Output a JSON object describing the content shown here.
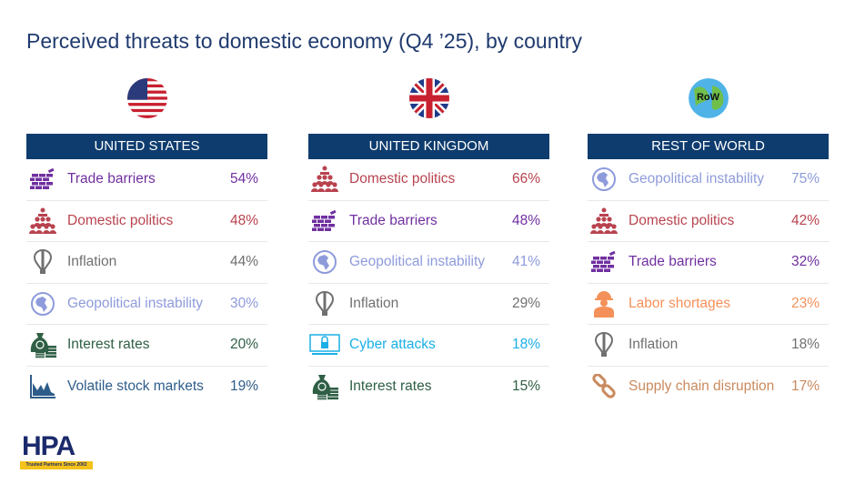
{
  "title": "Perceived threats to domestic economy (Q4 ’25), by country",
  "columns": [
    {
      "id": "us",
      "header": "UNITED STATES",
      "flag": "us-flag",
      "rows": [
        {
          "icon": "wall-icon",
          "label": "Trade barriers",
          "value": "54%",
          "color": "#7030A0"
        },
        {
          "icon": "crowd-icon",
          "label": "Domestic politics",
          "value": "48%",
          "color": "#B8434F"
        },
        {
          "icon": "balloon-icon",
          "label": "Inflation",
          "value": "44%",
          "color": "#707070"
        },
        {
          "icon": "globe-icon",
          "label": "Geopolitical instability",
          "value": "30%",
          "color": "#8E9BDB"
        },
        {
          "icon": "money-bag-icon",
          "label": "Interest rates",
          "value": "20%",
          "color": "#2F5F45"
        },
        {
          "icon": "stock-chart-icon",
          "label": "Volatile stock markets",
          "value": "19%",
          "color": "#2E5C8A"
        }
      ]
    },
    {
      "id": "uk",
      "header": "UNITED KINGDOM",
      "flag": "uk-flag",
      "rows": [
        {
          "icon": "crowd-icon",
          "label": "Domestic politics",
          "value": "66%",
          "color": "#B8434F"
        },
        {
          "icon": "wall-icon",
          "label": "Trade barriers",
          "value": "48%",
          "color": "#7030A0"
        },
        {
          "icon": "globe-icon",
          "label": "Geopolitical instability",
          "value": "41%",
          "color": "#8E9BDB"
        },
        {
          "icon": "balloon-icon",
          "label": "Inflation",
          "value": "29%",
          "color": "#707070"
        },
        {
          "icon": "cyber-lock-icon",
          "label": "Cyber attacks",
          "value": "18%",
          "color": "#1AAFE6"
        },
        {
          "icon": "money-bag-icon",
          "label": "Interest rates",
          "value": "15%",
          "color": "#2F5F45"
        }
      ]
    },
    {
      "id": "row",
      "header": "REST OF WORLD",
      "flag": "row-globe",
      "flag_text": "RoW",
      "rows": [
        {
          "icon": "globe-icon",
          "label": "Geopolitical instability",
          "value": "75%",
          "color": "#8E9BDB"
        },
        {
          "icon": "crowd-icon",
          "label": "Domestic politics",
          "value": "42%",
          "color": "#B8434F"
        },
        {
          "icon": "wall-icon",
          "label": "Trade barriers",
          "value": "32%",
          "color": "#7030A0"
        },
        {
          "icon": "worker-icon",
          "label": "Labor shortages",
          "value": "23%",
          "color": "#F4915A"
        },
        {
          "icon": "balloon-icon",
          "label": "Inflation",
          "value": "18%",
          "color": "#707070"
        },
        {
          "icon": "chain-icon",
          "label": "Supply chain disruption",
          "value": "17%",
          "color": "#C98A5E"
        }
      ]
    }
  ],
  "logo": {
    "name": "HPA",
    "tagline": "Trusted Partners Since 2002"
  }
}
